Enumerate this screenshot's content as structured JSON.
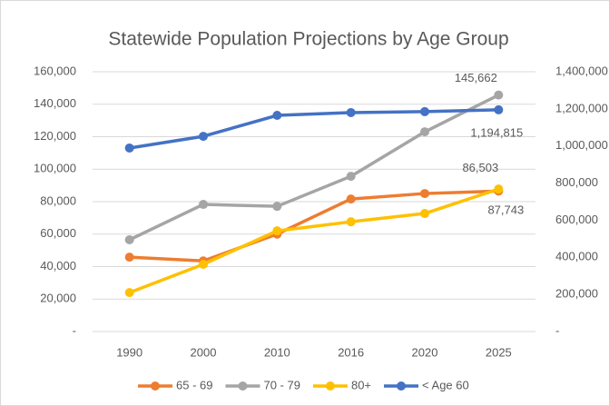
{
  "chart_data": {
    "type": "line",
    "title": "Statewide Population Projections by Age Group",
    "categories": [
      "1990",
      "2000",
      "2010",
      "2016",
      "2020",
      "2025"
    ],
    "series": [
      {
        "name": "65 - 69",
        "color": "#ed7d31",
        "values": [
          45800,
          43500,
          60000,
          81600,
          85000,
          86503
        ],
        "value_labels": [
          null,
          null,
          null,
          null,
          null,
          "86,503"
        ]
      },
      {
        "name": "70 - 79",
        "color": "#a5a5a5",
        "values": [
          56500,
          78300,
          77100,
          95600,
          123000,
          145662
        ],
        "value_labels": [
          null,
          null,
          null,
          null,
          null,
          "145,662"
        ]
      },
      {
        "name": "80+",
        "color": "#ffc000",
        "values": [
          24000,
          41400,
          62000,
          67600,
          72700,
          87743
        ],
        "value_labels": [
          null,
          null,
          null,
          null,
          null,
          "87,743"
        ]
      },
      {
        "name": "< Age 60",
        "color": "#4472c4",
        "axis": "y2",
        "values": [
          989000,
          1052000,
          1165000,
          1180000,
          1185000,
          1194815
        ],
        "value_labels": [
          null,
          null,
          null,
          null,
          null,
          "1,194,815"
        ]
      }
    ],
    "ylim": [
      0,
      160000
    ],
    "yticks": [
      {
        "value": 0,
        "label": "-"
      },
      {
        "value": 20000,
        "label": "20,000"
      },
      {
        "value": 40000,
        "label": "40,000"
      },
      {
        "value": 60000,
        "label": "60,000"
      },
      {
        "value": 80000,
        "label": "80,000"
      },
      {
        "value": 100000,
        "label": "100,000"
      },
      {
        "value": 120000,
        "label": "120,000"
      },
      {
        "value": 140000,
        "label": "140,000"
      },
      {
        "value": 160000,
        "label": "160,000"
      }
    ],
    "y2lim": [
      0,
      1400000
    ],
    "y2ticks": [
      {
        "value": 0,
        "label": "-"
      },
      {
        "value": 200000,
        "label": "200,000"
      },
      {
        "value": 400000,
        "label": "400,000"
      },
      {
        "value": 600000,
        "label": "600,000"
      },
      {
        "value": 800000,
        "label": "800,000"
      },
      {
        "value": 1000000,
        "label": "1,000,000"
      },
      {
        "value": 1200000,
        "label": "1,200,000"
      },
      {
        "value": 1400000,
        "label": "1,400,000"
      }
    ],
    "grid": true,
    "legend": "bottom"
  }
}
